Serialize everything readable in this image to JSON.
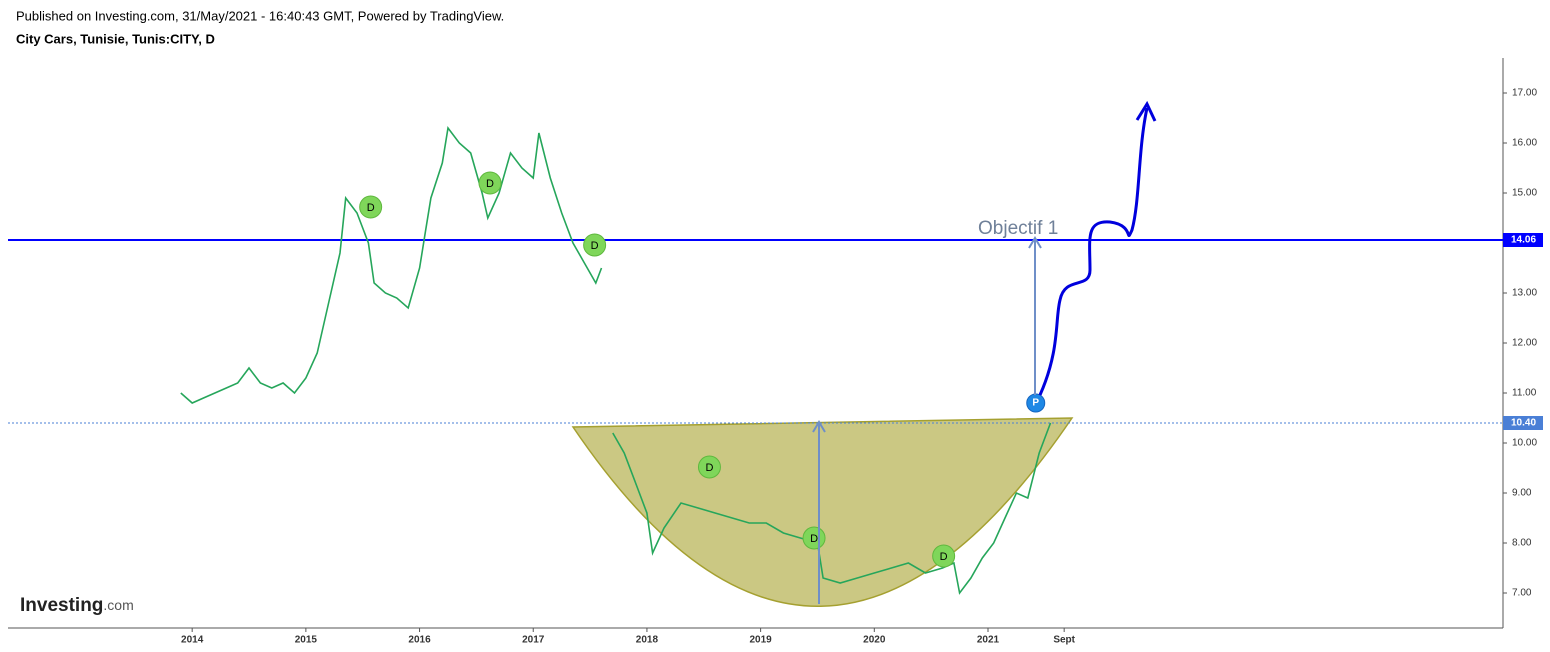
{
  "header": {
    "published": "Published on Investing.com, 31/May/2021 - 16:40:43 GMT, Powered by TradingView.",
    "symbol": "City Cars, Tunisie, Tunis:CITY, D"
  },
  "logo": {
    "name": "Investing",
    "suffix": ".com"
  },
  "chart_data": {
    "type": "line",
    "x": [
      2013.9,
      2014.0,
      2014.1,
      2014.2,
      2014.3,
      2014.4,
      2014.5,
      2014.6,
      2014.7,
      2014.8,
      2014.9,
      2015.0,
      2015.1,
      2015.2,
      2015.3,
      2015.35,
      2015.45,
      2015.55,
      2015.6,
      2015.7,
      2015.8,
      2015.9,
      2016.0,
      2016.05,
      2016.1,
      2016.2,
      2016.25,
      2016.35,
      2016.45,
      2016.55,
      2016.6,
      2016.7,
      2016.8,
      2016.9,
      2017.0,
      2017.05,
      2017.15,
      2017.25,
      2017.35,
      2017.45,
      2017.55,
      2017.6,
      2017.65,
      2017.7,
      2017.8,
      2017.9,
      2018.0,
      2018.05,
      2018.15,
      2018.3,
      2018.45,
      2018.6,
      2018.75,
      2018.9,
      2019.05,
      2019.2,
      2019.35,
      2019.5,
      2019.55,
      2019.7,
      2019.85,
      2020.0,
      2020.15,
      2020.3,
      2020.45,
      2020.6,
      2020.7,
      2020.75,
      2020.85,
      2020.95,
      2021.05,
      2021.15,
      2021.25,
      2021.35,
      2021.45,
      2021.55
    ],
    "series": [
      {
        "name": "CITY",
        "color": "#26a65b",
        "values": [
          11.0,
          10.8,
          10.9,
          11.0,
          11.1,
          11.2,
          11.5,
          11.2,
          11.1,
          11.2,
          11.0,
          11.3,
          11.8,
          12.8,
          13.8,
          14.9,
          14.6,
          14.0,
          13.2,
          13.0,
          12.9,
          12.7,
          13.5,
          14.2,
          14.9,
          15.6,
          16.3,
          16.0,
          15.8,
          15.0,
          14.5,
          15.0,
          15.8,
          15.5,
          15.3,
          16.2,
          15.3,
          14.6,
          14.0,
          13.6,
          13.2,
          13.5,
          null,
          10.2,
          9.8,
          9.2,
          8.6,
          7.8,
          8.3,
          8.8,
          8.7,
          8.6,
          8.5,
          8.4,
          8.4,
          8.2,
          8.1,
          8.0,
          7.3,
          7.2,
          7.3,
          7.4,
          7.5,
          7.6,
          7.4,
          7.5,
          7.6,
          7.0,
          7.3,
          7.7,
          8.0,
          8.5,
          9.0,
          8.9,
          9.8,
          10.4
        ]
      }
    ],
    "xlim": [
      2012.38,
      2025.53
    ],
    "xticks": [
      2014,
      2015,
      2016,
      2017,
      2018,
      2019,
      2020,
      2021,
      {
        "value": 2021.67,
        "label": "Sept"
      }
    ],
    "ylim": [
      6.3,
      17.7
    ],
    "yticks": [
      {
        "value": 7,
        "label": "7.00"
      },
      {
        "value": 8,
        "label": "8.00"
      },
      {
        "value": 9,
        "label": "9.00"
      },
      {
        "value": 10,
        "label": "10.00"
      },
      {
        "value": 11,
        "label": "11.00"
      },
      {
        "value": 12,
        "label": "12.00"
      },
      {
        "value": 13,
        "label": "13.00"
      },
      {
        "value": 14,
        "label": "14.00"
      },
      {
        "value": 15,
        "label": "15.00"
      },
      {
        "value": 16,
        "label": "16.00"
      },
      {
        "value": 17,
        "label": "17.00"
      }
    ],
    "hlines": [
      {
        "value": 14.06,
        "color": "#0000ff",
        "dashed": false
      },
      {
        "value": 10.4,
        "label": "10.40",
        "color": "#4a7fd6",
        "dashed": true
      }
    ],
    "dividends": {
      "label": "D",
      "x": [
        2015.57,
        2016.62,
        2017.54,
        2018.55,
        2019.47,
        2020.61
      ],
      "values": [
        14.72,
        15.2,
        13.96,
        9.52,
        8.1,
        7.74
      ]
    },
    "p_marker": {
      "label": "P",
      "x": 2021.42,
      "value": 10.8
    },
    "annotation": "Objectif 1"
  }
}
